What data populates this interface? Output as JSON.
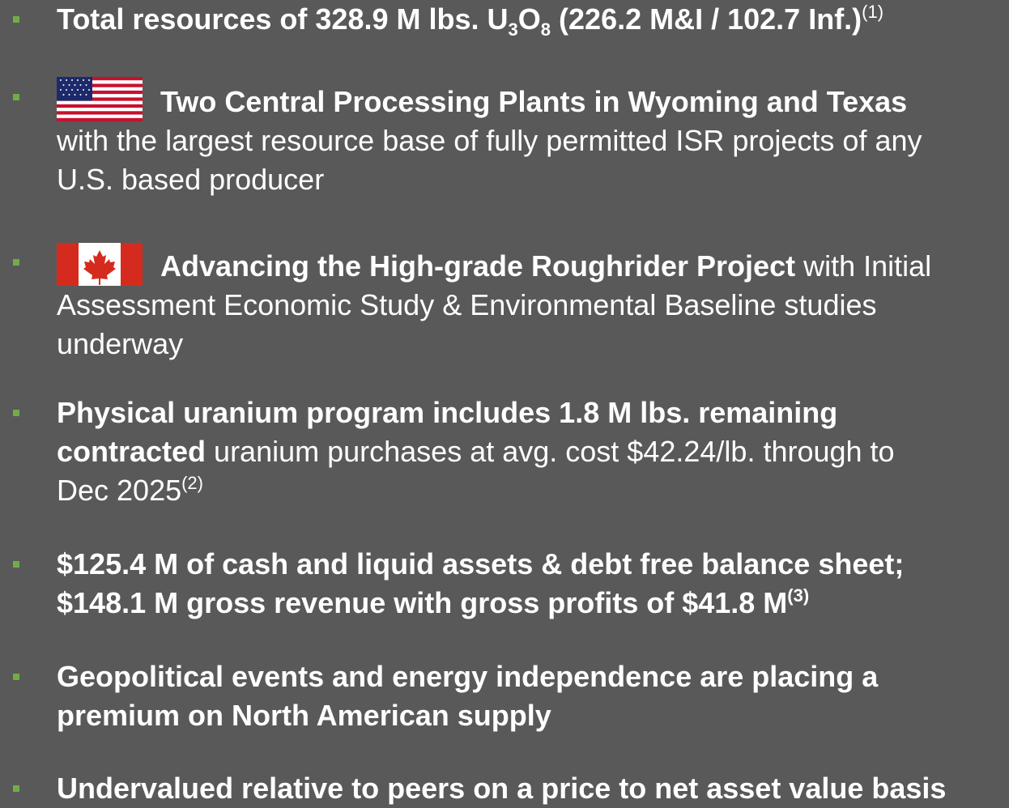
{
  "bullets": [
    {
      "lines": [
        {
          "pre": "Total resources of 328.9 M lbs. U",
          "sub1": "3",
          "mid": "O",
          "sub2": "8",
          "post": " (226.2 M&I / 102.7 Inf.)",
          "sup": "(1)"
        }
      ]
    },
    {
      "heading": "Two Central Processing Plants in Wyoming and Texas",
      "body": [
        "with the largest resource base of fully permitted ISR projects of any",
        "U.S. based producer"
      ]
    },
    {
      "heading": "Advancing the High-grade Roughrider Project",
      "body_first": " with Initial",
      "body": [
        "Assessment Economic Study & Environmental Baseline studies",
        "underway"
      ]
    },
    {
      "bold": [
        "Physical uranium program includes 1.8 M lbs. remaining",
        "contracted"
      ],
      "body": [
        " uranium purchases at avg. cost $42.24/lb. through to",
        "Dec 2025"
      ],
      "sup": "(2)"
    },
    {
      "bold": [
        "$125.4 M of cash and liquid assets & debt free balance sheet;",
        "$148.1 M gross revenue with gross profits of $41.8 M"
      ],
      "sup": "(3)"
    },
    {
      "bold": [
        "Geopolitical events and energy independence are placing a",
        "premium on North American supply"
      ]
    },
    {
      "bold": [
        "Undervalued relative to peers on a price to net asset value basis"
      ]
    }
  ]
}
